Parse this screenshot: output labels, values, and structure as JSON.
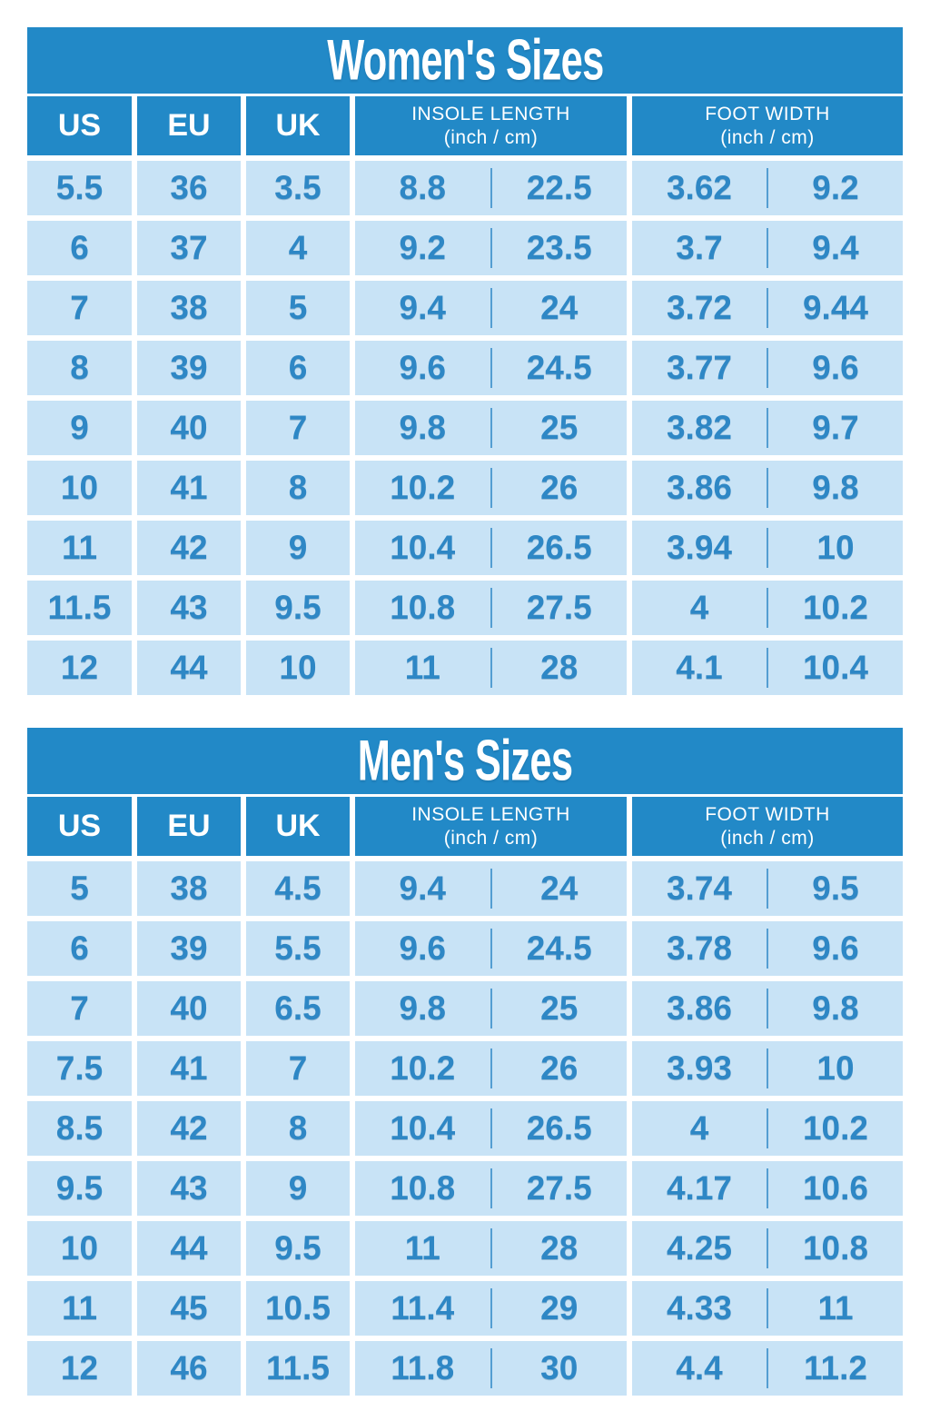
{
  "colors": {
    "header_blue": "#2289C7",
    "cell_light_blue": "#C8E3F6",
    "number_blue": "#2E87C5",
    "title_text": "#FFFFFF",
    "background": "#FFFFFF"
  },
  "chart_data": [
    {
      "type": "table",
      "title": "Women's Sizes",
      "headers": {
        "us": "US",
        "eu": "EU",
        "uk": "UK",
        "insole_title": "INSOLE LENGTH",
        "insole_sub": "(inch / cm)",
        "width_title": "FOOT WIDTH",
        "width_sub": "(inch / cm)"
      },
      "columns": [
        "US",
        "EU",
        "UK",
        "INSOLE LENGTH inch",
        "INSOLE LENGTH cm",
        "FOOT WIDTH inch",
        "FOOT WIDTH cm"
      ],
      "rows": [
        [
          "5.5",
          "36",
          "3.5",
          "8.8",
          "22.5",
          "3.62",
          "9.2"
        ],
        [
          "6",
          "37",
          "4",
          "9.2",
          "23.5",
          "3.7",
          "9.4"
        ],
        [
          "7",
          "38",
          "5",
          "9.4",
          "24",
          "3.72",
          "9.44"
        ],
        [
          "8",
          "39",
          "6",
          "9.6",
          "24.5",
          "3.77",
          "9.6"
        ],
        [
          "9",
          "40",
          "7",
          "9.8",
          "25",
          "3.82",
          "9.7"
        ],
        [
          "10",
          "41",
          "8",
          "10.2",
          "26",
          "3.86",
          "9.8"
        ],
        [
          "11",
          "42",
          "9",
          "10.4",
          "26.5",
          "3.94",
          "10"
        ],
        [
          "11.5",
          "43",
          "9.5",
          "10.8",
          "27.5",
          "4",
          "10.2"
        ],
        [
          "12",
          "44",
          "10",
          "11",
          "28",
          "4.1",
          "10.4"
        ]
      ]
    },
    {
      "type": "table",
      "title": "Men's Sizes",
      "headers": {
        "us": "US",
        "eu": "EU",
        "uk": "UK",
        "insole_title": "INSOLE LENGTH",
        "insole_sub": "(inch / cm)",
        "width_title": "FOOT WIDTH",
        "width_sub": "(inch / cm)"
      },
      "columns": [
        "US",
        "EU",
        "UK",
        "INSOLE LENGTH inch",
        "INSOLE LENGTH cm",
        "FOOT WIDTH inch",
        "FOOT WIDTH cm"
      ],
      "rows": [
        [
          "5",
          "38",
          "4.5",
          "9.4",
          "24",
          "3.74",
          "9.5"
        ],
        [
          "6",
          "39",
          "5.5",
          "9.6",
          "24.5",
          "3.78",
          "9.6"
        ],
        [
          "7",
          "40",
          "6.5",
          "9.8",
          "25",
          "3.86",
          "9.8"
        ],
        [
          "7.5",
          "41",
          "7",
          "10.2",
          "26",
          "3.93",
          "10"
        ],
        [
          "8.5",
          "42",
          "8",
          "10.4",
          "26.5",
          "4",
          "10.2"
        ],
        [
          "9.5",
          "43",
          "9",
          "10.8",
          "27.5",
          "4.17",
          "10.6"
        ],
        [
          "10",
          "44",
          "9.5",
          "11",
          "28",
          "4.25",
          "10.8"
        ],
        [
          "11",
          "45",
          "10.5",
          "11.4",
          "29",
          "4.33",
          "11"
        ],
        [
          "12",
          "46",
          "11.5",
          "11.8",
          "30",
          "4.4",
          "11.2"
        ]
      ]
    }
  ]
}
